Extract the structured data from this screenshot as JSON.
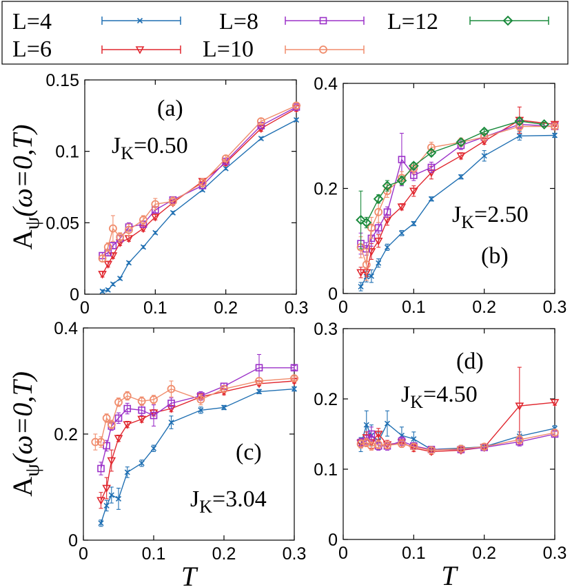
{
  "chart_data": [
    {
      "type": "line",
      "panel_id": "(a)",
      "annotation": {
        "base": "J",
        "sub": "K",
        "rest": "=0.50"
      },
      "ylabel": {
        "base": "A",
        "sub": "ψ",
        "rest": "(ω=0,T)"
      },
      "xlabel": "",
      "xlim": [
        0,
        0.3
      ],
      "ylim": [
        0,
        0.15
      ],
      "xticks": [
        "0",
        "0.1",
        "0.2",
        "0.3"
      ],
      "yticks": [
        "0",
        "0.05",
        "0.1",
        "0.15"
      ],
      "series": [
        {
          "name": "L=4",
          "x": [
            0.025,
            0.033,
            0.04,
            0.05,
            0.0625,
            0.083,
            0.1,
            0.125,
            0.167,
            0.2,
            0.25,
            0.3
          ],
          "y": [
            0.002,
            0.003,
            0.007,
            0.011,
            0.022,
            0.033,
            0.043,
            0.057,
            0.073,
            0.088,
            0.109,
            0.122
          ],
          "err": [
            0.001,
            0.001,
            0.001,
            0.001,
            0.001,
            0.001,
            0.001,
            0.001,
            0.001,
            0.001,
            0.001,
            0.001
          ]
        },
        {
          "name": "L=6",
          "x": [
            0.025,
            0.033,
            0.04,
            0.05,
            0.0625,
            0.083,
            0.1,
            0.125,
            0.167,
            0.2,
            0.25,
            0.3
          ],
          "y": [
            0.014,
            0.021,
            0.027,
            0.036,
            0.039,
            0.046,
            0.054,
            0.064,
            0.079,
            0.092,
            0.116,
            0.13
          ],
          "err": [
            0.002,
            0.002,
            0.002,
            0.002,
            0.002,
            0.002,
            0.002,
            0.002,
            0.002,
            0.002,
            0.002,
            0.002
          ]
        },
        {
          "name": "L=8",
          "x": [
            0.025,
            0.033,
            0.04,
            0.05,
            0.0625,
            0.083,
            0.1,
            0.125,
            0.167,
            0.2,
            0.25,
            0.3
          ],
          "y": [
            0.027,
            0.029,
            0.034,
            0.039,
            0.047,
            0.049,
            0.059,
            0.066,
            0.076,
            0.093,
            0.118,
            0.131
          ],
          "err": [
            0.002,
            0.002,
            0.002,
            0.002,
            0.003,
            0.002,
            0.002,
            0.002,
            0.002,
            0.002,
            0.002,
            0.002
          ]
        },
        {
          "name": "L=10",
          "x": [
            0.025,
            0.033,
            0.04,
            0.05,
            0.0625,
            0.083,
            0.1,
            0.125,
            0.167,
            0.2,
            0.25,
            0.3
          ],
          "y": [
            0.025,
            0.033,
            0.046,
            0.04,
            0.045,
            0.052,
            0.063,
            0.065,
            0.078,
            0.095,
            0.121,
            0.132
          ],
          "err": [
            0.002,
            0.003,
            0.009,
            0.003,
            0.004,
            0.003,
            0.004,
            0.003,
            0.003,
            0.002,
            0.002,
            0.002
          ]
        }
      ]
    },
    {
      "type": "line",
      "panel_id": "(b)",
      "annotation": {
        "base": "J",
        "sub": "K",
        "rest": "=2.50"
      },
      "ylabel": null,
      "xlabel": "",
      "xlim": [
        0,
        0.3
      ],
      "ylim": [
        0,
        0.4
      ],
      "xticks": [
        "0",
        "0.1",
        "0.2",
        "0.3"
      ],
      "yticks": [
        "0",
        "0.2",
        "0.4"
      ],
      "series": [
        {
          "name": "L=4",
          "x": [
            0.025,
            0.033,
            0.04,
            0.05,
            0.0625,
            0.083,
            0.1,
            0.125,
            0.167,
            0.2,
            0.25,
            0.3
          ],
          "y": [
            0.013,
            0.032,
            0.033,
            0.058,
            0.088,
            0.115,
            0.133,
            0.18,
            0.222,
            0.262,
            0.3,
            0.301
          ],
          "err": [
            0.008,
            0.01,
            0.012,
            0.008,
            0.006,
            0.005,
            0.004,
            0.004,
            0.004,
            0.01,
            0.008,
            0.004
          ]
        },
        {
          "name": "L=6",
          "x": [
            0.025,
            0.033,
            0.04,
            0.05,
            0.0625,
            0.083,
            0.1,
            0.125,
            0.167,
            0.2,
            0.25,
            0.3
          ],
          "y": [
            0.04,
            0.04,
            0.08,
            0.1,
            0.14,
            0.165,
            0.195,
            0.23,
            0.262,
            0.29,
            0.33,
            0.322
          ],
          "err": [
            0.01,
            0.008,
            0.015,
            0.012,
            0.01,
            0.006,
            0.01,
            0.012,
            0.006,
            0.006,
            0.025,
            0.004
          ]
        },
        {
          "name": "L=8",
          "x": [
            0.025,
            0.033,
            0.04,
            0.05,
            0.0625,
            0.083,
            0.1,
            0.125,
            0.167,
            0.2,
            0.25,
            0.3
          ],
          "y": [
            0.095,
            0.085,
            0.105,
            0.125,
            0.155,
            0.255,
            0.225,
            0.24,
            0.282,
            0.298,
            0.322,
            0.318
          ],
          "err": [
            0.02,
            0.012,
            0.015,
            0.01,
            0.01,
            0.05,
            0.01,
            0.01,
            0.008,
            0.006,
            0.008,
            0.004
          ]
        },
        {
          "name": "L=10",
          "x": [
            0.025,
            0.033,
            0.04,
            0.05,
            0.0625,
            0.083,
            0.1,
            0.125,
            0.167,
            0.2,
            0.25,
            0.3
          ],
          "y": [
            0.088,
            0.055,
            0.125,
            0.155,
            0.195,
            0.22,
            0.238,
            0.278,
            0.288,
            0.298,
            0.318,
            0.318
          ],
          "err": [
            0.02,
            0.03,
            0.02,
            0.02,
            0.012,
            0.012,
            0.01,
            0.01,
            0.008,
            0.006,
            0.008,
            0.004
          ]
        },
        {
          "name": "L=12",
          "x": [
            0.025,
            0.033,
            0.05,
            0.0625,
            0.083,
            0.1,
            0.125,
            0.167,
            0.2,
            0.25,
            0.285
          ],
          "y": [
            0.14,
            0.135,
            0.18,
            0.205,
            0.215,
            0.243,
            0.268,
            0.288,
            0.308,
            0.328,
            0.322
          ],
          "err": [
            0.055,
            0.01,
            0.008,
            0.01,
            0.008,
            0.006,
            0.006,
            0.006,
            0.004,
            0.006,
            0.004
          ]
        }
      ]
    },
    {
      "type": "line",
      "panel_id": "(c)",
      "annotation": {
        "base": "J",
        "sub": "K",
        "rest": "=3.04"
      },
      "ylabel": {
        "base": "A",
        "sub": "ψ",
        "rest": "(ω=0,T)"
      },
      "xlabel": "T",
      "xlim": [
        0,
        0.3
      ],
      "ylim": [
        0,
        0.4
      ],
      "xticks": [
        "0",
        "0.1",
        "0.2",
        "0.3"
      ],
      "yticks": [
        "0",
        "0.2",
        "0.4"
      ],
      "series": [
        {
          "name": "L=4",
          "x": [
            0.025,
            0.033,
            0.04,
            0.05,
            0.0625,
            0.083,
            0.1,
            0.125,
            0.167,
            0.2,
            0.25,
            0.3
          ],
          "y": [
            0.032,
            0.065,
            0.085,
            0.078,
            0.128,
            0.145,
            0.173,
            0.222,
            0.245,
            0.25,
            0.28,
            0.285
          ],
          "err": [
            0.006,
            0.01,
            0.015,
            0.02,
            0.01,
            0.006,
            0.006,
            0.012,
            0.006,
            0.004,
            0.004,
            0.004
          ]
        },
        {
          "name": "L=6",
          "x": [
            0.025,
            0.033,
            0.04,
            0.05,
            0.0625,
            0.083,
            0.1,
            0.125,
            0.167,
            0.2,
            0.25,
            0.3
          ],
          "y": [
            0.075,
            0.098,
            0.15,
            0.192,
            0.218,
            0.228,
            0.24,
            0.248,
            0.27,
            0.28,
            0.295,
            0.3
          ],
          "err": [
            0.015,
            0.02,
            0.02,
            0.006,
            0.006,
            0.006,
            0.006,
            0.006,
            0.006,
            0.006,
            0.004,
            0.004
          ]
        },
        {
          "name": "L=8",
          "x": [
            0.025,
            0.033,
            0.04,
            0.05,
            0.0625,
            0.083,
            0.1,
            0.125,
            0.167,
            0.2,
            0.25,
            0.3
          ],
          "y": [
            0.135,
            0.178,
            0.215,
            0.23,
            0.248,
            0.245,
            0.235,
            0.258,
            0.272,
            0.29,
            0.325,
            0.325
          ],
          "err": [
            0.012,
            0.01,
            0.008,
            0.01,
            0.01,
            0.01,
            0.02,
            0.01,
            0.008,
            0.006,
            0.025,
            0.004
          ]
        },
        {
          "name": "L=10",
          "x": [
            0.017,
            0.025,
            0.033,
            0.04,
            0.05,
            0.0625,
            0.083,
            0.1,
            0.125,
            0.167,
            0.2,
            0.25,
            0.3
          ],
          "y": [
            0.185,
            0.185,
            0.23,
            0.218,
            0.26,
            0.272,
            0.262,
            0.265,
            0.285,
            0.265,
            0.285,
            0.3,
            0.305
          ],
          "err": [
            0.015,
            0.01,
            0.008,
            0.008,
            0.008,
            0.008,
            0.008,
            0.008,
            0.015,
            0.01,
            0.006,
            0.006,
            0.004
          ]
        }
      ]
    },
    {
      "type": "line",
      "panel_id": "(d)",
      "annotation": {
        "base": "J",
        "sub": "K",
        "rest": "=4.50"
      },
      "ylabel": null,
      "xlabel": "T",
      "xlim": [
        0,
        0.3
      ],
      "ylim": [
        0,
        0.3
      ],
      "xticks": [
        "0",
        "0.1",
        "0.2",
        "0.3"
      ],
      "yticks": [
        "0",
        "0.1",
        "0.2",
        "0.3"
      ],
      "series": [
        {
          "name": "L=4",
          "x": [
            0.025,
            0.033,
            0.04,
            0.05,
            0.0625,
            0.083,
            0.1,
            0.125,
            0.167,
            0.2,
            0.25,
            0.3
          ],
          "y": [
            0.135,
            0.163,
            0.148,
            0.14,
            0.165,
            0.148,
            0.143,
            0.128,
            0.13,
            0.132,
            0.147,
            0.158
          ],
          "err": [
            0.01,
            0.02,
            0.015,
            0.012,
            0.018,
            0.012,
            0.01,
            0.004,
            0.004,
            0.004,
            0.006,
            0.004
          ]
        },
        {
          "name": "L=6",
          "x": [
            0.025,
            0.033,
            0.04,
            0.05,
            0.0625,
            0.083,
            0.1,
            0.125,
            0.167,
            0.2,
            0.25,
            0.3
          ],
          "y": [
            0.137,
            0.145,
            0.138,
            0.15,
            0.135,
            0.138,
            0.13,
            0.125,
            0.127,
            0.131,
            0.19,
            0.195
          ],
          "err": [
            0.006,
            0.008,
            0.008,
            0.008,
            0.006,
            0.006,
            0.005,
            0.004,
            0.004,
            0.004,
            0.055,
            0.004
          ]
        },
        {
          "name": "L=8",
          "x": [
            0.025,
            0.033,
            0.04,
            0.05,
            0.0625,
            0.083,
            0.1,
            0.125,
            0.167,
            0.2,
            0.25,
            0.3
          ],
          "y": [
            0.138,
            0.14,
            0.15,
            0.133,
            0.133,
            0.14,
            0.133,
            0.128,
            0.128,
            0.131,
            0.139,
            0.15
          ],
          "err": [
            0.006,
            0.008,
            0.01,
            0.006,
            0.006,
            0.006,
            0.005,
            0.004,
            0.004,
            0.004,
            0.006,
            0.004
          ]
        },
        {
          "name": "L=10",
          "x": [
            0.025,
            0.033,
            0.04,
            0.05,
            0.0625,
            0.083,
            0.1,
            0.125,
            0.167,
            0.2,
            0.25,
            0.3
          ],
          "y": [
            0.136,
            0.138,
            0.133,
            0.135,
            0.134,
            0.136,
            0.132,
            0.127,
            0.129,
            0.132,
            0.142,
            0.152
          ],
          "err": [
            0.006,
            0.006,
            0.006,
            0.006,
            0.005,
            0.005,
            0.004,
            0.004,
            0.004,
            0.004,
            0.006,
            0.004
          ]
        }
      ]
    }
  ],
  "legend": {
    "placement": "top",
    "entries": [
      {
        "name": "L=4",
        "color": "#1f6fb2",
        "marker": "x"
      },
      {
        "name": "L=6",
        "color": "#e0262e",
        "marker": "triangle-down-open"
      },
      {
        "name": "L=8",
        "color": "#9b30c8",
        "marker": "square-open"
      },
      {
        "name": "L=10",
        "color": "#f08c6c",
        "marker": "circle-open"
      },
      {
        "name": "L=12",
        "color": "#1a8a3c",
        "marker": "diamond-open"
      }
    ]
  },
  "grid": false
}
